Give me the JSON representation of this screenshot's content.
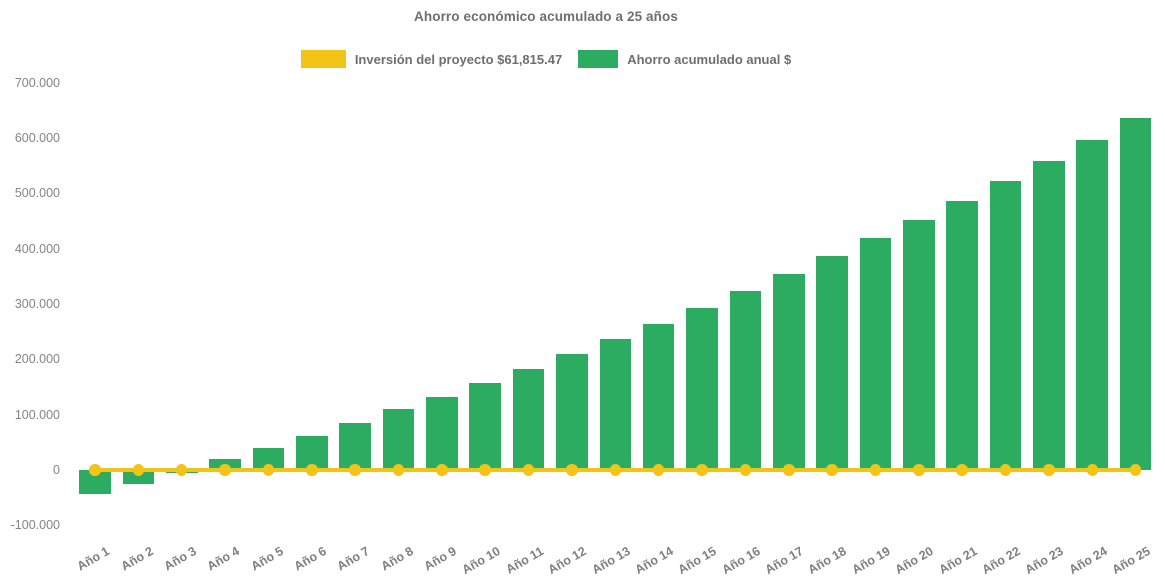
{
  "title": "Ahorro económico acumulado a 25 años",
  "legend": {
    "items": [
      {
        "label": "Inversión del proyecto $61,815.47",
        "color": "#F2C417",
        "series": "investment-line"
      },
      {
        "label": "Ahorro acumulado anual $",
        "color": "#2BAC61",
        "series": "savings-bars"
      }
    ]
  },
  "colors": {
    "background": "#ffffff",
    "investment_yellow": "#F2C417",
    "savings_green": "#2BAC61",
    "title_text": "#6f6f6f",
    "axis_text": "#848484"
  },
  "chart_data": {
    "type": "bar",
    "title": "Ahorro económico acumulado a 25 años",
    "categories": [
      "Año 1",
      "Año 2",
      "Año 3",
      "Año 4",
      "Año 5",
      "Año 6",
      "Año 7",
      "Año 8",
      "Año 9",
      "Año 10",
      "Año 11",
      "Año 12",
      "Año 13",
      "Año 14",
      "Año 15",
      "Año 16",
      "Año 17",
      "Año 18",
      "Año 19",
      "Año 20",
      "Año 21",
      "Año 22",
      "Año 23",
      "Año 24",
      "Año 25"
    ],
    "series": [
      {
        "name": "Ahorro acumulado anual $",
        "type": "bar",
        "color": "#2BAC61",
        "values": [
          -43000,
          -25000,
          -5000,
          19000,
          40000,
          62000,
          84000,
          110000,
          132000,
          157000,
          183000,
          210000,
          237000,
          264000,
          293000,
          323000,
          354000,
          387000,
          420000,
          451000,
          486000,
          523000,
          558000,
          596000,
          636000
        ]
      },
      {
        "name": "Inversión del proyecto $61,815.47",
        "type": "line",
        "color": "#F2C417",
        "y_value": 0,
        "marker": "circle"
      }
    ],
    "ylim": [
      -100000,
      700000
    ],
    "yticks": {
      "values": [
        -100000,
        0,
        100000,
        200000,
        300000,
        400000,
        500000,
        600000,
        700000
      ],
      "labels": [
        "-100.000",
        "0",
        "100.000",
        "200.000",
        "300.000",
        "400.000",
        "500.000",
        "600.000",
        "700.000"
      ]
    },
    "grid": false,
    "legend_position": "top",
    "x_label_rotation_deg": -30
  }
}
